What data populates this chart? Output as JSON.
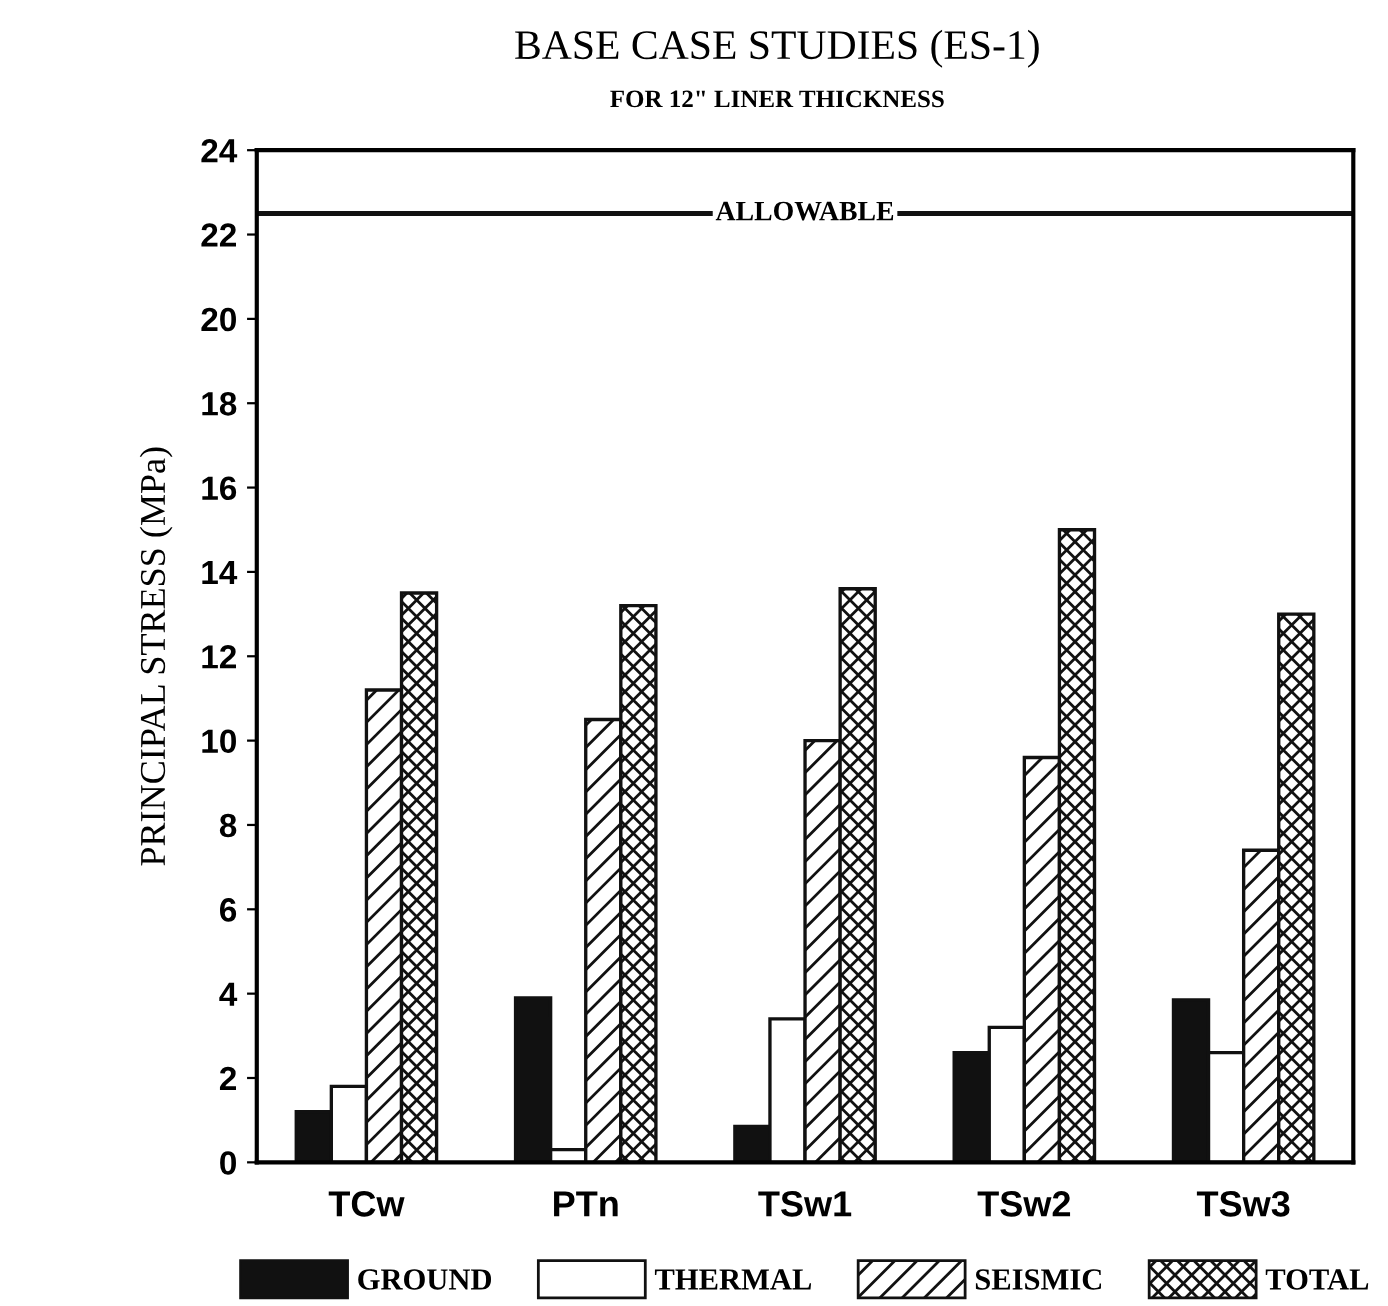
{
  "chart_data": {
    "type": "bar",
    "title": "BASE CASE STUDIES (ES-1)",
    "subtitle": "FOR 12\" LINER THICKNESS",
    "ylabel": "PRINCIPAL STRESS (MPa)",
    "categories": [
      "TCw",
      "PTn",
      "TSw1",
      "TSw2",
      "TSw3"
    ],
    "series": [
      {
        "name": "GROUND",
        "color": "#111111",
        "values": [
          1.2,
          3.9,
          0.85,
          2.6,
          3.85
        ]
      },
      {
        "name": "THERMAL",
        "color": "#ffffff",
        "values": [
          1.8,
          0.3,
          3.4,
          3.2,
          2.6
        ]
      },
      {
        "name": "SEISMIC",
        "color": "#111111",
        "values": [
          11.2,
          10.5,
          10.0,
          9.6,
          7.4
        ]
      },
      {
        "name": "TOTAL",
        "color": "#111111",
        "values": [
          13.5,
          13.2,
          13.6,
          15.0,
          13.0
        ]
      }
    ],
    "ylim": [
      0,
      24
    ],
    "yticks": [
      0,
      2,
      4,
      6,
      8,
      10,
      12,
      14,
      16,
      18,
      20,
      22,
      24
    ],
    "ref_lines": [
      {
        "axis": "y",
        "value": 22.5,
        "label": "ALLOWABLE",
        "color": "#111111"
      }
    ],
    "grid": false,
    "legend": "bottom"
  }
}
